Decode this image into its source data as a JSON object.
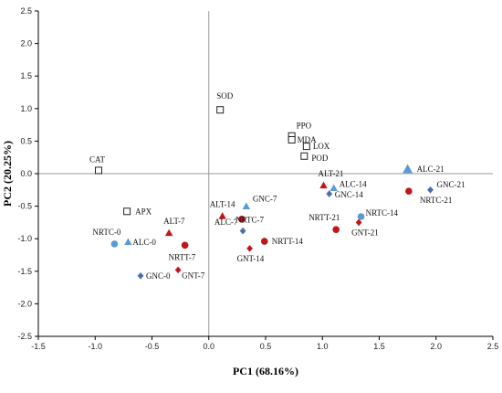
{
  "chart_data": {
    "type": "scatter",
    "xlabel": "PC1 (68.16%)",
    "ylabel": "PC2 (20.25%)",
    "xlim": [
      -1.5,
      2.5
    ],
    "ylim": [
      -2.5,
      2.5
    ],
    "xticks": [
      "-1.5",
      "-1.0",
      "-0.5",
      "0.0",
      "0.5",
      "1.0",
      "1.5",
      "2.0",
      "2.5"
    ],
    "yticks": [
      "2.5",
      "2.0",
      "1.5",
      "1.0",
      "0.5",
      "0.0",
      "-0.5",
      "-1.0",
      "-1.5",
      "-2.0",
      "-2.5"
    ],
    "grid": false,
    "colors": {
      "red": "#c0161b",
      "blue": "#5b9bd5",
      "navy": "#4a6fa8",
      "axis": "#000000",
      "zero_line": "#9a9a9a"
    },
    "points": [
      {
        "label": "SOD",
        "x": 0.1,
        "y": 0.98,
        "marker": "square-open",
        "color": "open"
      },
      {
        "label": "CAT",
        "x": -0.97,
        "y": 0.05,
        "marker": "square-open",
        "color": "open"
      },
      {
        "label": "APX",
        "x": -0.72,
        "y": -0.58,
        "marker": "square-open",
        "color": "open"
      },
      {
        "label": "PPO",
        "x": 0.73,
        "y": 0.58,
        "marker": "square-open",
        "color": "open"
      },
      {
        "label": "MDA",
        "x": 0.73,
        "y": 0.52,
        "marker": "square-open",
        "color": "open"
      },
      {
        "label": "LOX",
        "x": 0.86,
        "y": 0.42,
        "marker": "square-open",
        "color": "open"
      },
      {
        "label": "POD",
        "x": 0.84,
        "y": 0.27,
        "marker": "square-open",
        "color": "open"
      },
      {
        "label": "NRTC-0",
        "x": -0.83,
        "y": -1.08,
        "marker": "circle",
        "color": "blue"
      },
      {
        "label": "ALC-0",
        "x": -0.71,
        "y": -1.05,
        "marker": "triangle",
        "color": "blue"
      },
      {
        "label": "ALT-7",
        "x": -0.35,
        "y": -0.91,
        "marker": "triangle",
        "color": "red"
      },
      {
        "label": "NRTT-7",
        "x": -0.21,
        "y": -1.1,
        "marker": "circle",
        "color": "red"
      },
      {
        "label": "GNC-0",
        "x": -0.6,
        "y": -1.57,
        "marker": "diamond",
        "color": "navy"
      },
      {
        "label": "GNT-7",
        "x": -0.27,
        "y": -1.48,
        "marker": "diamond",
        "color": "red"
      },
      {
        "label": "ALT-14",
        "x": 0.12,
        "y": -0.65,
        "marker": "triangle",
        "color": "red"
      },
      {
        "label": "GNC-7",
        "x": 0.33,
        "y": -0.5,
        "marker": "triangle",
        "color": "blue"
      },
      {
        "label": "ALC-7",
        "x": 0.29,
        "y": -0.7,
        "marker": "circle",
        "color": "red"
      },
      {
        "label": "NRTC-7",
        "x": 0.3,
        "y": -0.88,
        "marker": "diamond",
        "color": "navy"
      },
      {
        "label": "NRTT-14",
        "x": 0.49,
        "y": -1.04,
        "marker": "circle",
        "color": "red"
      },
      {
        "label": "GNT-14",
        "x": 0.36,
        "y": -1.15,
        "marker": "diamond",
        "color": "red"
      },
      {
        "label": "ALT-21",
        "x": 1.01,
        "y": -0.18,
        "marker": "triangle",
        "color": "red"
      },
      {
        "label": "ALC-14",
        "x": 1.1,
        "y": -0.22,
        "marker": "triangle",
        "color": "blue"
      },
      {
        "label": "GNC-14",
        "x": 1.06,
        "y": -0.31,
        "marker": "diamond",
        "color": "navy"
      },
      {
        "label": "NRTT-21",
        "x": 1.12,
        "y": -0.86,
        "marker": "circle",
        "color": "red"
      },
      {
        "label": "NRTC-14",
        "x": 1.34,
        "y": -0.66,
        "marker": "circle",
        "color": "blue"
      },
      {
        "label": "GNT-21",
        "x": 1.32,
        "y": -0.75,
        "marker": "diamond",
        "color": "red"
      },
      {
        "label": "ALC-21",
        "x": 1.75,
        "y": 0.07,
        "marker": "triangle",
        "color": "blue"
      },
      {
        "label": "NRTC-21",
        "x": 1.76,
        "y": -0.27,
        "marker": "circle",
        "color": "red"
      },
      {
        "label": "GNC-21",
        "x": 1.95,
        "y": -0.25,
        "marker": "diamond",
        "color": "navy"
      }
    ]
  }
}
